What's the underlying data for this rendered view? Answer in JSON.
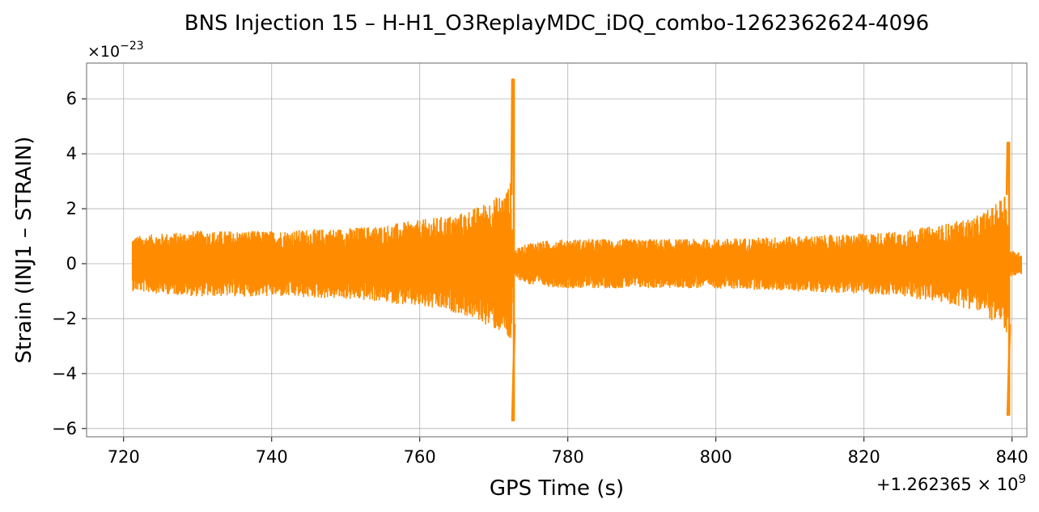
{
  "chart_data": {
    "type": "line",
    "title": "BNS Injection 15 – H-H1_O3ReplayMDC_iDQ_combo-1262362624-4096",
    "xlabel": "GPS Time (s)",
    "ylabel": "Strain (INJ1 – STRAIN)",
    "x_offset_label": "+1.262365 × 10^9",
    "y_scale_label": "×10^−23",
    "xlim": [
      715,
      842
    ],
    "ylim": [
      -6.3,
      7.3
    ],
    "xticks": [
      720,
      740,
      760,
      780,
      800,
      820,
      840
    ],
    "xtick_labels": [
      "720",
      "740",
      "760",
      "780",
      "800",
      "820",
      "840"
    ],
    "yticks": [
      -6,
      -4,
      -2,
      0,
      2,
      4,
      6
    ],
    "ytick_labels": [
      "−6",
      "−4",
      "−2",
      "0",
      "2",
      "4",
      "6"
    ],
    "grid": true,
    "series": [
      {
        "color": "#ff8c00",
        "x_start": 721.2,
        "x_end": 841.3,
        "envelope": [
          [
            721.2,
            1.0
          ],
          [
            725,
            1.1
          ],
          [
            730,
            1.2
          ],
          [
            740,
            1.2
          ],
          [
            750,
            1.3
          ],
          [
            755,
            1.4
          ],
          [
            760,
            1.6
          ],
          [
            765,
            1.8
          ],
          [
            768,
            2.1
          ],
          [
            770,
            2.4
          ],
          [
            771.5,
            2.6
          ],
          [
            772.3,
            3.0
          ],
          [
            772.7,
            0.5
          ],
          [
            775,
            0.8
          ],
          [
            780,
            0.9
          ],
          [
            790,
            0.9
          ],
          [
            800,
            0.9
          ],
          [
            810,
            1.0
          ],
          [
            820,
            1.1
          ],
          [
            825,
            1.2
          ],
          [
            830,
            1.4
          ],
          [
            835,
            1.7
          ],
          [
            838,
            2.2
          ],
          [
            839.3,
            2.8
          ],
          [
            839.6,
            0.5
          ],
          [
            841.3,
            0.4
          ]
        ],
        "peaks": [
          {
            "x": 772.6,
            "max": 6.7,
            "min": -5.7
          },
          {
            "x": 839.5,
            "max": 4.4,
            "min": -5.5
          }
        ]
      }
    ]
  }
}
